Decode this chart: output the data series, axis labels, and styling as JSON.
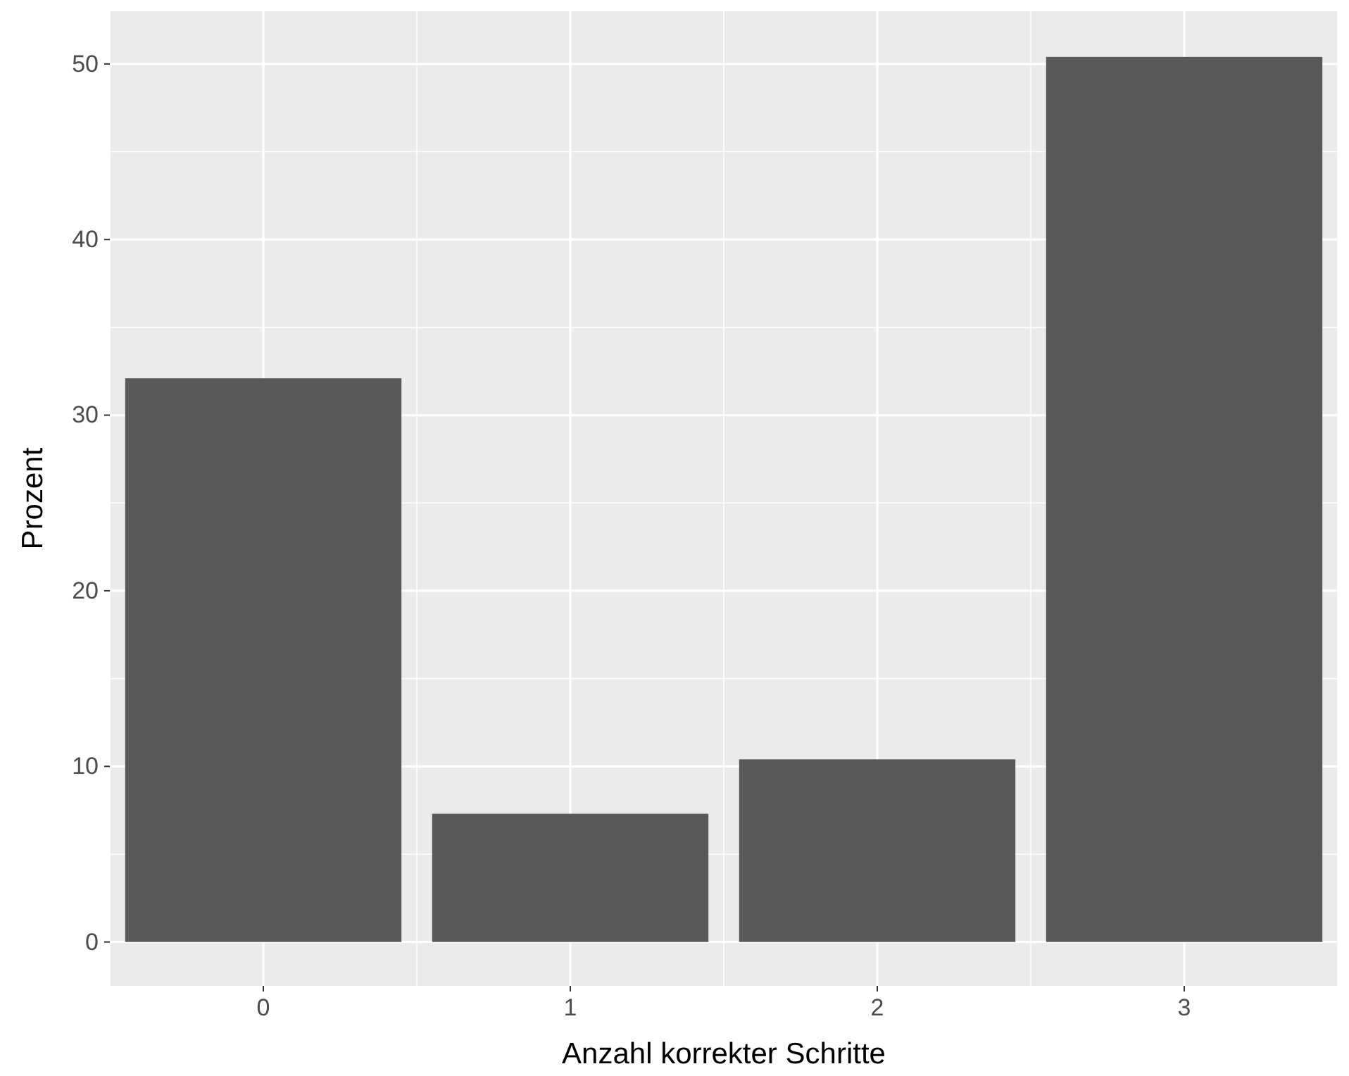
{
  "chart_data": {
    "type": "bar",
    "xlabel": "Anzahl korrekter Schritte",
    "ylabel": "Prozent",
    "categories": [
      "0",
      "1",
      "2",
      "3"
    ],
    "values": [
      32.1,
      7.3,
      10.4,
      50.4
    ],
    "color": "#595959",
    "ylim": [
      -2.5,
      53
    ],
    "yticks": [
      0,
      10,
      20,
      30,
      40,
      50
    ],
    "grid": true
  }
}
